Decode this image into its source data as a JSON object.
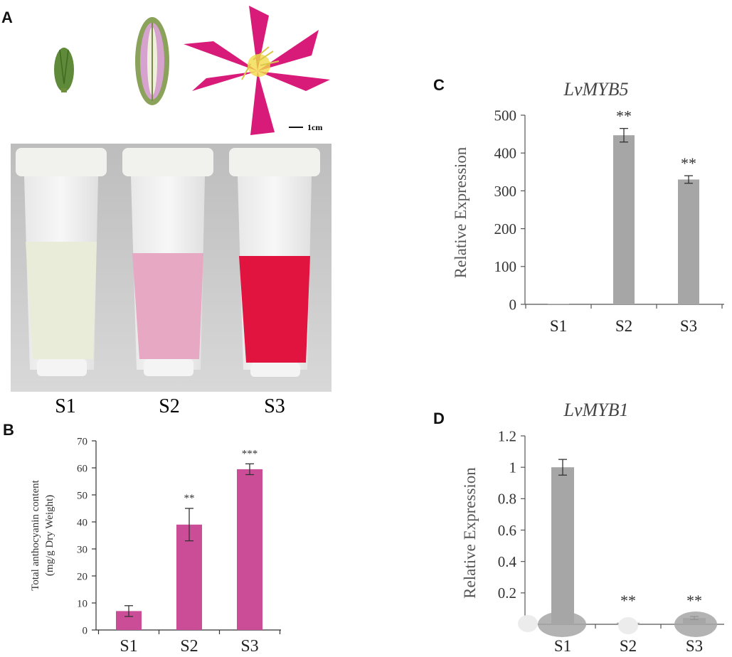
{
  "panels": {
    "A": {
      "letter": "A",
      "scale_bar_label": "1cm",
      "sample_labels": [
        "S1",
        "S2",
        "S3"
      ],
      "stage_colors": [
        "#5e8a3a",
        "#d6a3cf",
        "#d81b78"
      ],
      "tube_liquid_colors": [
        "#e9ecd8",
        "#e7a8c3",
        "#e0143f"
      ]
    },
    "B": {
      "letter": "B"
    },
    "C": {
      "letter": "C"
    },
    "D": {
      "letter": "D"
    }
  },
  "chart_data": [
    {
      "id": "B",
      "type": "bar",
      "title": "",
      "ylabel_line1": "Total anthocyanin content",
      "ylabel_line2": "(mg/g Dry Weight)",
      "categories": [
        "S1",
        "S2",
        "S3"
      ],
      "values": [
        7,
        39,
        59.5
      ],
      "errors": [
        2,
        6,
        2
      ],
      "significance": [
        "",
        "**",
        "***"
      ],
      "ylim": [
        0,
        70
      ],
      "yticks": [
        0,
        10,
        20,
        30,
        40,
        50,
        60,
        70
      ],
      "ytick_labels": [
        "0",
        "10",
        "20",
        "30",
        "40",
        "50",
        "60",
        "70"
      ],
      "bar_color": "#cc4d97"
    },
    {
      "id": "C",
      "type": "bar",
      "title": "LvMYB5",
      "ylabel": "Relative Expression",
      "categories": [
        "S1",
        "S2",
        "S3"
      ],
      "values": [
        1,
        447,
        330
      ],
      "errors": [
        0,
        18,
        10
      ],
      "significance": [
        "",
        "**",
        "**"
      ],
      "ylim": [
        0,
        500
      ],
      "yticks": [
        0,
        100,
        200,
        300,
        400,
        500
      ],
      "ytick_labels": [
        "0",
        "100",
        "200",
        "300",
        "400",
        "500"
      ],
      "bar_color": "#a6a6a6"
    },
    {
      "id": "D",
      "type": "bar",
      "title": "LvMYB1",
      "ylabel": "Relative Expression",
      "categories": [
        "S1",
        "S2",
        "S3"
      ],
      "values": [
        1,
        0.01,
        0.04
      ],
      "errors": [
        0.05,
        0,
        0.01
      ],
      "significance": [
        "",
        "**",
        "**"
      ],
      "ylim": [
        0,
        1.2
      ],
      "yticks": [
        0.2,
        0.4,
        0.6,
        0.8,
        1.0,
        1.2
      ],
      "ytick_labels": [
        "0.2",
        "0.4",
        "0.6",
        "0.8",
        "1",
        "1.2"
      ],
      "bar_color": "#a6a6a6"
    }
  ]
}
